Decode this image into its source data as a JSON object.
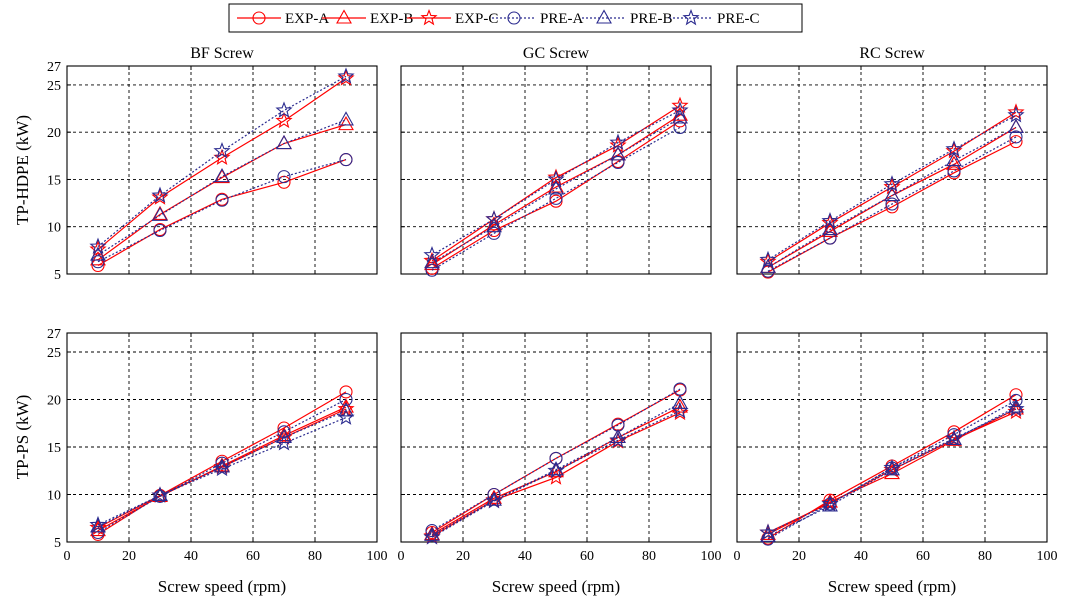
{
  "legend": [
    {
      "label": "EXP-A",
      "marker": "circle",
      "color": "#ff0000",
      "dash": false
    },
    {
      "label": "EXP-B",
      "marker": "triangle",
      "color": "#ff0000",
      "dash": false
    },
    {
      "label": "EXP-C",
      "marker": "star",
      "color": "#ff0000",
      "dash": false
    },
    {
      "label": "PRE-A",
      "marker": "circle",
      "color": "#2b2b8f",
      "dash": true
    },
    {
      "label": "PRE-B",
      "marker": "triangle",
      "color": "#2b2b8f",
      "dash": true
    },
    {
      "label": "PRE-C",
      "marker": "star",
      "color": "#2b2b8f",
      "dash": true
    }
  ],
  "colors": {
    "exp": "#ff0000",
    "pre": "#2b2b8f",
    "grid": "#000000"
  },
  "row_labels": [
    "TP-HDPE (kW)",
    "TP-PS (kW)"
  ],
  "xlabel": "Screw speed (rpm)",
  "chart_data": [
    {
      "type": "line",
      "title": "BF Screw",
      "ylabel": "TP-HDPE (kW)",
      "xlabel": "",
      "x": [
        10,
        30,
        50,
        70,
        90
      ],
      "xlim": [
        0,
        100
      ],
      "ylim": [
        5,
        27
      ],
      "xticks": [
        0,
        20,
        40,
        60,
        80,
        100
      ],
      "yticks": [
        5,
        10,
        15,
        20,
        25,
        27
      ],
      "grid": true,
      "series": [
        {
          "name": "EXP-A",
          "values": [
            5.9,
            9.7,
            12.9,
            14.7,
            17.1
          ]
        },
        {
          "name": "EXP-B",
          "values": [
            6.5,
            11.3,
            15.2,
            18.8,
            20.8
          ]
        },
        {
          "name": "EXP-C",
          "values": [
            7.6,
            13.1,
            17.3,
            21.2,
            25.7
          ]
        },
        {
          "name": "PRE-A",
          "values": [
            6.3,
            9.6,
            12.8,
            15.3,
            17.1
          ]
        },
        {
          "name": "PRE-B",
          "values": [
            7.0,
            11.2,
            15.3,
            18.8,
            21.3
          ]
        },
        {
          "name": "PRE-C",
          "values": [
            7.9,
            13.3,
            18.0,
            22.3,
            25.9
          ]
        }
      ]
    },
    {
      "type": "line",
      "title": "GC Screw",
      "ylabel": "",
      "xlabel": "",
      "x": [
        10,
        30,
        50,
        70,
        90
      ],
      "xlim": [
        0,
        100
      ],
      "ylim": [
        5,
        27
      ],
      "xticks": [
        0,
        20,
        40,
        60,
        80,
        100
      ],
      "yticks": [
        5,
        10,
        15,
        20,
        25,
        27
      ],
      "grid": true,
      "series": [
        {
          "name": "EXP-A",
          "values": [
            5.6,
            9.6,
            12.7,
            16.9,
            21.2
          ]
        },
        {
          "name": "EXP-B",
          "values": [
            6.0,
            10.2,
            14.2,
            17.6,
            21.8
          ]
        },
        {
          "name": "EXP-C",
          "values": [
            6.4,
            10.8,
            15.2,
            18.6,
            22.8
          ]
        },
        {
          "name": "PRE-A",
          "values": [
            5.4,
            9.3,
            13.0,
            16.8,
            20.5
          ]
        },
        {
          "name": "PRE-B",
          "values": [
            6.2,
            10.0,
            14.0,
            17.6,
            21.5
          ]
        },
        {
          "name": "PRE-C",
          "values": [
            7.0,
            10.8,
            15.0,
            18.9,
            22.3
          ]
        }
      ]
    },
    {
      "type": "line",
      "title": "RC Screw",
      "ylabel": "",
      "xlabel": "",
      "x": [
        10,
        30,
        50,
        70,
        90
      ],
      "xlim": [
        0,
        100
      ],
      "ylim": [
        5,
        27
      ],
      "xticks": [
        0,
        20,
        40,
        60,
        80,
        100
      ],
      "yticks": [
        5,
        10,
        15,
        20,
        25,
        27
      ],
      "grid": true,
      "series": [
        {
          "name": "EXP-A",
          "values": [
            5.2,
            8.8,
            12.1,
            15.7,
            19.0
          ]
        },
        {
          "name": "EXP-B",
          "values": [
            5.7,
            9.5,
            13.3,
            16.6,
            20.5
          ]
        },
        {
          "name": "EXP-C",
          "values": [
            6.3,
            10.4,
            14.2,
            18.0,
            22.1
          ]
        },
        {
          "name": "PRE-A",
          "values": [
            5.3,
            8.8,
            12.4,
            15.9,
            19.5
          ]
        },
        {
          "name": "PRE-B",
          "values": [
            5.7,
            9.7,
            13.3,
            17.0,
            20.5
          ]
        },
        {
          "name": "PRE-C",
          "values": [
            6.5,
            10.6,
            14.5,
            18.2,
            21.8
          ]
        }
      ]
    },
    {
      "type": "line",
      "title": "",
      "ylabel": "TP-PS (kW)",
      "xlabel": "Screw speed (rpm)",
      "x": [
        10,
        30,
        50,
        70,
        90
      ],
      "xlim": [
        0,
        100
      ],
      "ylim": [
        5,
        27
      ],
      "xticks": [
        0,
        20,
        40,
        60,
        80,
        100
      ],
      "yticks": [
        5,
        10,
        15,
        20,
        25,
        27
      ],
      "grid": true,
      "series": [
        {
          "name": "EXP-A",
          "values": [
            5.8,
            9.9,
            13.5,
            17.0,
            20.8
          ]
        },
        {
          "name": "EXP-B",
          "values": [
            6.2,
            9.8,
            13.0,
            16.2,
            19.2
          ]
        },
        {
          "name": "EXP-C",
          "values": [
            6.5,
            9.9,
            12.9,
            16.0,
            19.0
          ]
        },
        {
          "name": "PRE-A",
          "values": [
            6.0,
            9.8,
            13.3,
            16.6,
            20.0
          ]
        },
        {
          "name": "PRE-B",
          "values": [
            6.6,
            9.9,
            12.9,
            16.0,
            18.8
          ]
        },
        {
          "name": "PRE-C",
          "values": [
            6.8,
            9.9,
            12.7,
            15.4,
            18.1
          ]
        }
      ]
    },
    {
      "type": "line",
      "title": "",
      "ylabel": "",
      "xlabel": "Screw speed (rpm)",
      "x": [
        10,
        30,
        50,
        70,
        90
      ],
      "xlim": [
        0,
        100
      ],
      "ylim": [
        5,
        27
      ],
      "xticks": [
        0,
        20,
        40,
        60,
        80,
        100
      ],
      "yticks": [
        5,
        10,
        15,
        20,
        25,
        27
      ],
      "grid": true,
      "series": [
        {
          "name": "EXP-A",
          "values": [
            6.0,
            10.0,
            13.8,
            17.4,
            21.0
          ]
        },
        {
          "name": "EXP-B",
          "values": [
            5.8,
            9.6,
            12.4,
            16.0,
            19.2
          ]
        },
        {
          "name": "EXP-C",
          "values": [
            5.6,
            9.4,
            11.8,
            15.6,
            18.6
          ]
        },
        {
          "name": "PRE-A",
          "values": [
            6.2,
            10.0,
            13.8,
            17.3,
            21.1
          ]
        },
        {
          "name": "PRE-B",
          "values": [
            5.7,
            9.4,
            12.6,
            16.0,
            19.6
          ]
        },
        {
          "name": "PRE-C",
          "values": [
            5.5,
            9.3,
            12.5,
            15.7,
            18.8
          ]
        }
      ]
    },
    {
      "type": "line",
      "title": "",
      "ylabel": "",
      "xlabel": "Screw speed (rpm)",
      "x": [
        10,
        30,
        50,
        70,
        90
      ],
      "xlim": [
        0,
        100
      ],
      "ylim": [
        5,
        27
      ],
      "xticks": [
        0,
        20,
        40,
        60,
        80,
        100
      ],
      "yticks": [
        5,
        10,
        15,
        20,
        25,
        27
      ],
      "grid": true,
      "series": [
        {
          "name": "EXP-A",
          "values": [
            5.4,
            9.4,
            13.0,
            16.6,
            20.5
          ]
        },
        {
          "name": "EXP-B",
          "values": [
            5.8,
            9.2,
            12.2,
            15.7,
            19.0
          ]
        },
        {
          "name": "EXP-C",
          "values": [
            6.0,
            9.1,
            12.6,
            15.8,
            18.7
          ]
        },
        {
          "name": "PRE-A",
          "values": [
            5.3,
            9.0,
            12.8,
            16.3,
            19.9
          ]
        },
        {
          "name": "PRE-B",
          "values": [
            5.6,
            8.8,
            12.6,
            15.8,
            19.2
          ]
        },
        {
          "name": "PRE-C",
          "values": [
            6.0,
            9.0,
            12.8,
            15.9,
            19.0
          ]
        }
      ]
    }
  ]
}
